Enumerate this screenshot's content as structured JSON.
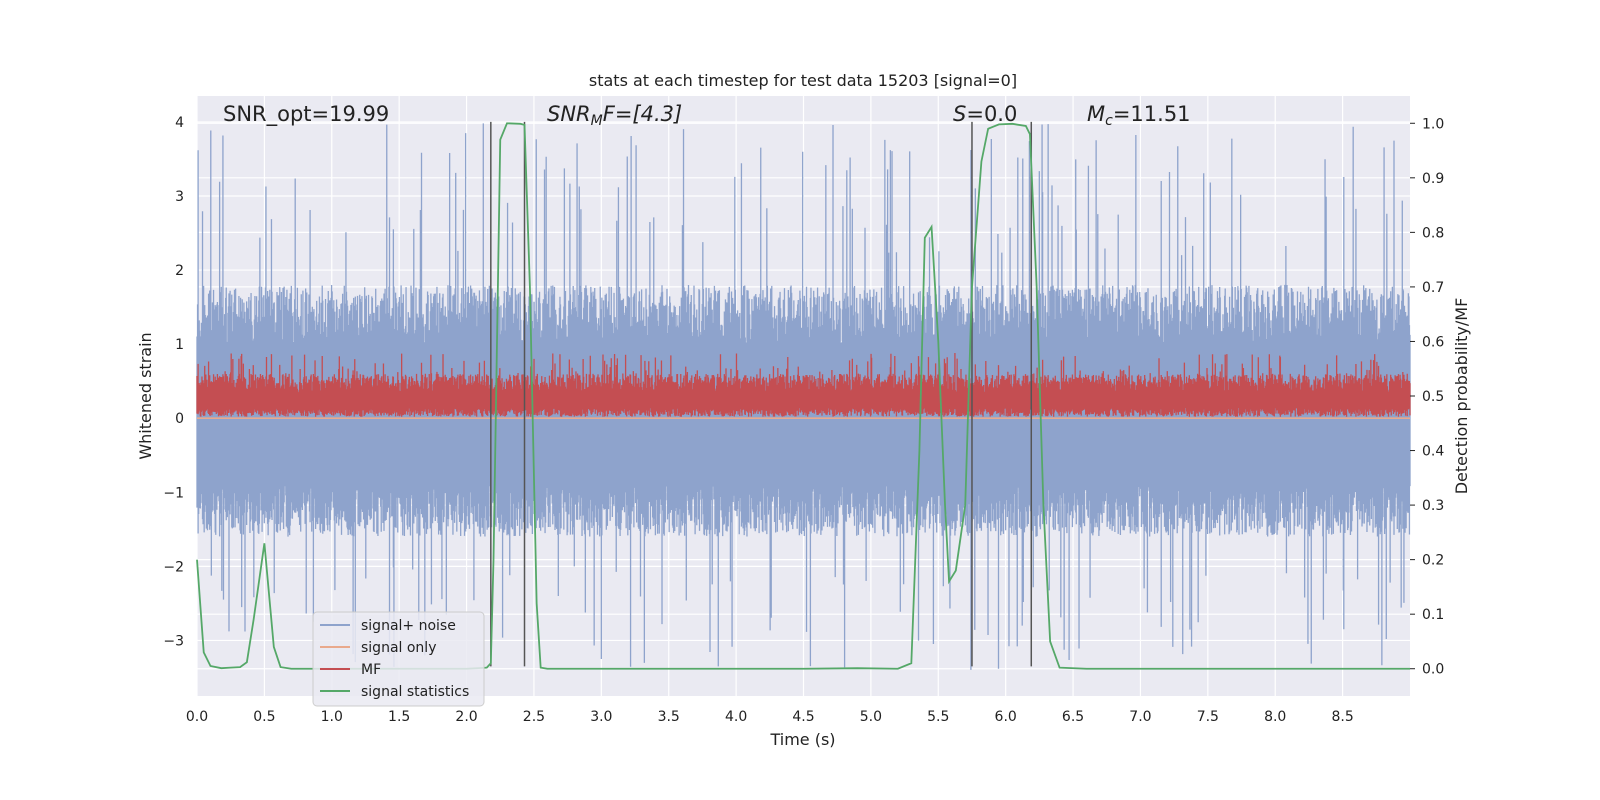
{
  "chart_data": {
    "type": "line",
    "title": "stats at each timestep for test data 15203 [signal=0]",
    "xlabel": "Time (s)",
    "ylabel": "Whitened strain",
    "ylabel_right": "Detection probability/MF",
    "xlim": [
      0,
      9
    ],
    "ylim": [
      -3.75,
      4.35
    ],
    "ylim_right": [
      -0.05,
      1.05
    ],
    "x_ticks": [
      0.0,
      0.5,
      1.0,
      1.5,
      2.0,
      2.5,
      3.0,
      3.5,
      4.0,
      4.5,
      5.0,
      5.5,
      6.0,
      6.5,
      7.0,
      7.5,
      8.0,
      8.5
    ],
    "x_tick_labels": [
      "0.0",
      "0.5",
      "1.0",
      "1.5",
      "2.0",
      "2.5",
      "3.0",
      "3.5",
      "4.0",
      "4.5",
      "5.0",
      "5.5",
      "6.0",
      "6.5",
      "7.0",
      "7.5",
      "8.0",
      "8.5"
    ],
    "y_ticks": [
      4,
      3,
      2,
      1,
      0,
      -1,
      -2,
      -3
    ],
    "y_tick_labels": [
      "4",
      "3",
      "2",
      "1",
      "0",
      "−1",
      "−2",
      "−3"
    ],
    "y_ticks_right": [
      1.0,
      0.9,
      0.8,
      0.7,
      0.6,
      0.5,
      0.4,
      0.3,
      0.2,
      0.1,
      0.0
    ],
    "y_tick_labels_right": [
      "1.0",
      "0.9",
      "0.8",
      "0.7",
      "0.6",
      "0.5",
      "0.4",
      "0.3",
      "0.2",
      "0.1",
      "0.0"
    ],
    "grid": true,
    "legend_placement": "lower-left",
    "annotations": {
      "snr_opt": "SNR_opt=19.99",
      "snr_mf_main": "SNR",
      "snr_mf_sub": "M",
      "snr_mf_rest": "F=[4.3]",
      "s_main": "S",
      "s_rest": "=0.0",
      "mc_main": "M",
      "mc_sub": "c",
      "mc_rest": "=11.51"
    },
    "vertical_lines": [
      2.18,
      2.43,
      5.75,
      6.19
    ],
    "vertical_line_range": [
      -3.35,
      4.0
    ],
    "series": [
      {
        "name": "signal+ noise",
        "color": "#8ea3cc",
        "axis": "left",
        "kind": "noise",
        "n_points": 2200,
        "envelope_typical": [
          -1.5,
          1.7
        ],
        "peak_max": 4.0,
        "peak_min": -3.4
      },
      {
        "name": "signal only",
        "color": "#e9a98c",
        "axis": "left",
        "kind": "constant",
        "value": 0.0
      },
      {
        "name": "MF",
        "color": "#c44e52",
        "axis": "left",
        "kind": "noise",
        "n_points": 2200,
        "band": [
          0.02,
          0.55
        ],
        "peak_max": 0.88
      },
      {
        "name": "signal statistics",
        "color": "#55a868",
        "axis": "right",
        "kind": "line",
        "x": [
          0.0,
          0.05,
          0.1,
          0.18,
          0.25,
          0.32,
          0.37,
          0.42,
          0.5,
          0.57,
          0.62,
          0.7,
          1.0,
          1.5,
          2.0,
          2.15,
          2.18,
          2.2,
          2.25,
          2.3,
          2.4,
          2.43,
          2.47,
          2.52,
          2.55,
          2.6,
          3.0,
          3.5,
          4.0,
          4.5,
          4.9,
          5.2,
          5.3,
          5.36,
          5.4,
          5.45,
          5.5,
          5.55,
          5.58,
          5.63,
          5.7,
          5.75,
          5.82,
          5.87,
          5.95,
          6.05,
          6.15,
          6.18,
          6.23,
          6.28,
          6.33,
          6.4,
          6.6,
          7.0,
          8.0,
          9.0
        ],
        "y": [
          0.2,
          0.03,
          0.005,
          0.001,
          0.002,
          0.003,
          0.012,
          0.09,
          0.23,
          0.04,
          0.003,
          0.0,
          0.0,
          0.0,
          0.0,
          0.002,
          0.01,
          0.2,
          0.97,
          1.0,
          0.999,
          0.997,
          0.7,
          0.12,
          0.002,
          0.0,
          0.0,
          0.0,
          0.0,
          0.0,
          0.001,
          0.0,
          0.01,
          0.4,
          0.79,
          0.81,
          0.6,
          0.3,
          0.16,
          0.18,
          0.3,
          0.7,
          0.93,
          0.99,
          0.998,
          0.999,
          0.995,
          0.98,
          0.7,
          0.3,
          0.05,
          0.002,
          0.0,
          0.0,
          0.0,
          0.0
        ]
      }
    ]
  }
}
